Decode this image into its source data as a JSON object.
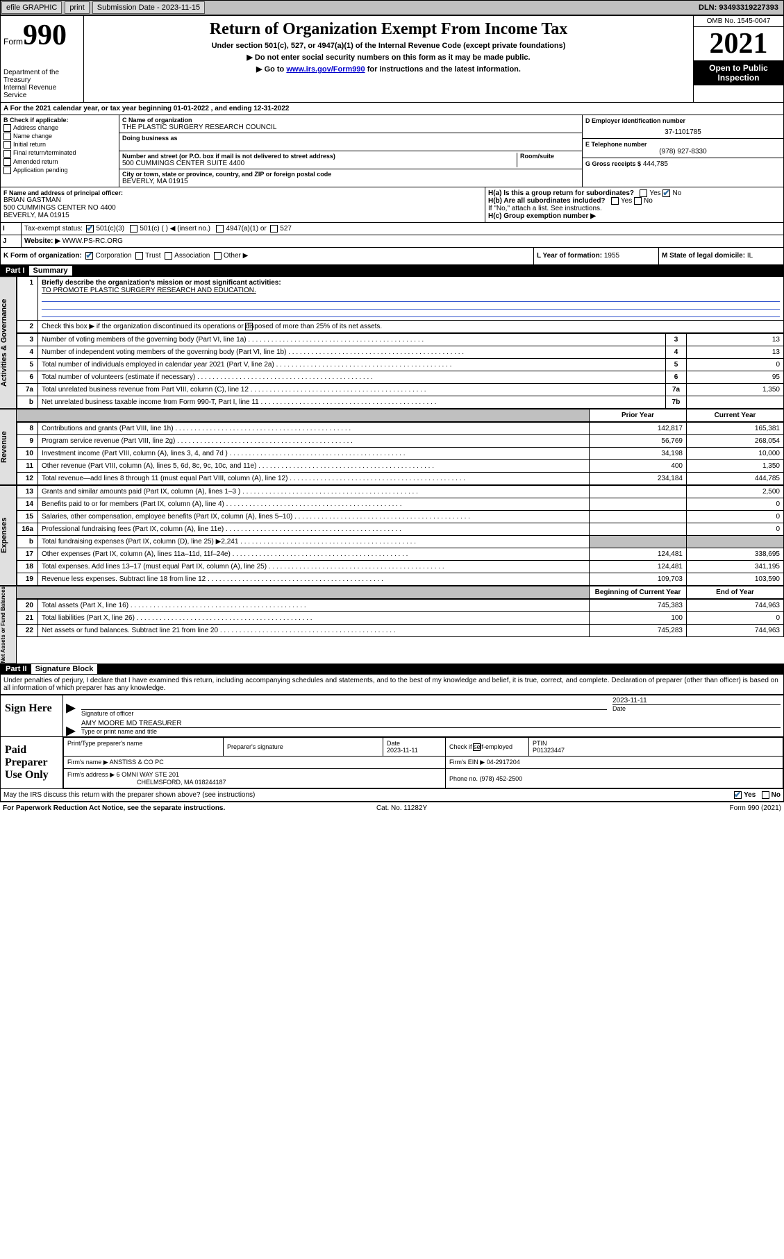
{
  "topbar": {
    "efile": "efile GRAPHIC",
    "print": "print",
    "subm_lbl": "Submission Date -",
    "subm_date": "2023-11-15",
    "dln_lbl": "DLN:",
    "dln": "93493319227393"
  },
  "hdr": {
    "form": "Form",
    "formno": "990",
    "dept": "Department of the Treasury",
    "irs": "Internal Revenue Service",
    "title": "Return of Organization Exempt From Income Tax",
    "sub1": "Under section 501(c), 527, or 4947(a)(1) of the Internal Revenue Code (except private foundations)",
    "sub2": "▶ Do not enter social security numbers on this form as it may be made public.",
    "sub3_pre": "▶ Go to ",
    "sub3_link": "www.irs.gov/Form990",
    "sub3_post": " for instructions and the latest information.",
    "omb": "OMB No. 1545-0047",
    "year": "2021",
    "open": "Open to Public Inspection"
  },
  "period": {
    "text": "A For the 2021 calendar year, or tax year beginning 01-01-2022   , and ending 12-31-2022"
  },
  "blockB": {
    "title": "B Check if applicable:",
    "items": [
      "Address change",
      "Name change",
      "Initial return",
      "Final return/terminated",
      "Amended return",
      "Application pending"
    ]
  },
  "blockC": {
    "name_lbl": "C Name of organization",
    "name": "THE PLASTIC SURGERY RESEARCH COUNCIL",
    "dba": "Doing business as",
    "street_lbl": "Number and street (or P.O. box if mail is not delivered to street address)",
    "room_lbl": "Room/suite",
    "street": "500 CUMMINGS CENTER SUITE 4400",
    "city_lbl": "City or town, state or province, country, and ZIP or foreign postal code",
    "city": "BEVERLY, MA  01915"
  },
  "blockD": {
    "lbl": "D Employer identification number",
    "val": "37-1101785"
  },
  "blockE": {
    "lbl": "E Telephone number",
    "val": "(978) 927-8330"
  },
  "blockG": {
    "lbl": "G Gross receipts $",
    "val": "444,785"
  },
  "blockF": {
    "lbl": "F Name and address of principal officer:",
    "name": "BRIAN GASTMAN",
    "addr1": "500 CUMMINGS CENTER NO 4400",
    "addr2": "BEVERLY, MA  01915"
  },
  "blockH": {
    "ha": "H(a)  Is this a group return for subordinates?",
    "hb": "H(b)  Are all subordinates included?",
    "hb_note": "If \"No,\" attach a list. See instructions.",
    "hc": "H(c)  Group exemption number ▶",
    "yes": "Yes",
    "no": "No"
  },
  "blockI": {
    "lbl": "Tax-exempt status:",
    "o1": "501(c)(3)",
    "o2": "501(c) (   ) ◀ (insert no.)",
    "o3": "4947(a)(1) or",
    "o4": "527"
  },
  "blockJ": {
    "lbl": "Website: ▶",
    "val": "WWW.PS-RC.ORG"
  },
  "blockK": {
    "lbl": "K Form of organization:",
    "o1": "Corporation",
    "o2": "Trust",
    "o3": "Association",
    "o4": "Other ▶"
  },
  "blockL": {
    "lbl": "L Year of formation:",
    "val": "1955"
  },
  "blockM": {
    "lbl": "M State of legal domicile:",
    "val": "IL"
  },
  "part1": {
    "hdr": "Part I",
    "title": "Summary",
    "q1_lbl": "Briefly describe the organization's mission or most significant activities:",
    "q1_val": "TO PROMOTE PLASTIC SURGERY RESEARCH AND EDUCATION.",
    "q2": "Check this box ▶        if the organization discontinued its operations or disposed of more than 25% of its net assets.",
    "rows_gov": [
      {
        "n": "3",
        "t": "Number of voting members of the governing body (Part VI, line 1a)",
        "ln": "3",
        "v": "13"
      },
      {
        "n": "4",
        "t": "Number of independent voting members of the governing body (Part VI, line 1b)",
        "ln": "4",
        "v": "13"
      },
      {
        "n": "5",
        "t": "Total number of individuals employed in calendar year 2021 (Part V, line 2a)",
        "ln": "5",
        "v": "0"
      },
      {
        "n": "6",
        "t": "Total number of volunteers (estimate if necessary)",
        "ln": "6",
        "v": "95"
      },
      {
        "n": "7a",
        "t": "Total unrelated business revenue from Part VIII, column (C), line 12",
        "ln": "7a",
        "v": "1,350"
      },
      {
        "n": "b",
        "t": "Net unrelated business taxable income from Form 990-T, Part I, line 11",
        "ln": "7b",
        "v": ""
      }
    ],
    "col_py": "Prior Year",
    "col_cy": "Current Year",
    "rows_rev": [
      {
        "n": "8",
        "t": "Contributions and grants (Part VIII, line 1h)",
        "py": "142,817",
        "cy": "165,381"
      },
      {
        "n": "9",
        "t": "Program service revenue (Part VIII, line 2g)",
        "py": "56,769",
        "cy": "268,054"
      },
      {
        "n": "10",
        "t": "Investment income (Part VIII, column (A), lines 3, 4, and 7d )",
        "py": "34,198",
        "cy": "10,000"
      },
      {
        "n": "11",
        "t": "Other revenue (Part VIII, column (A), lines 5, 6d, 8c, 9c, 10c, and 11e)",
        "py": "400",
        "cy": "1,350"
      },
      {
        "n": "12",
        "t": "Total revenue—add lines 8 through 11 (must equal Part VIII, column (A), line 12)",
        "py": "234,184",
        "cy": "444,785"
      }
    ],
    "rows_exp": [
      {
        "n": "13",
        "t": "Grants and similar amounts paid (Part IX, column (A), lines 1–3 )",
        "py": "",
        "cy": "2,500"
      },
      {
        "n": "14",
        "t": "Benefits paid to or for members (Part IX, column (A), line 4)",
        "py": "",
        "cy": "0"
      },
      {
        "n": "15",
        "t": "Salaries, other compensation, employee benefits (Part IX, column (A), lines 5–10)",
        "py": "",
        "cy": "0"
      },
      {
        "n": "16a",
        "t": "Professional fundraising fees (Part IX, column (A), line 11e)",
        "py": "",
        "cy": "0"
      },
      {
        "n": "b",
        "t": "Total fundraising expenses (Part IX, column (D), line 25) ▶2,241",
        "py": "SHADE",
        "cy": "SHADE"
      },
      {
        "n": "17",
        "t": "Other expenses (Part IX, column (A), lines 11a–11d, 11f–24e)",
        "py": "124,481",
        "cy": "338,695"
      },
      {
        "n": "18",
        "t": "Total expenses. Add lines 13–17 (must equal Part IX, column (A), line 25)",
        "py": "124,481",
        "cy": "341,195"
      },
      {
        "n": "19",
        "t": "Revenue less expenses. Subtract line 18 from line 12",
        "py": "109,703",
        "cy": "103,590"
      }
    ],
    "col_boy": "Beginning of Current Year",
    "col_eoy": "End of Year",
    "rows_net": [
      {
        "n": "20",
        "t": "Total assets (Part X, line 16)",
        "py": "745,383",
        "cy": "744,963"
      },
      {
        "n": "21",
        "t": "Total liabilities (Part X, line 26)",
        "py": "100",
        "cy": "0"
      },
      {
        "n": "22",
        "t": "Net assets or fund balances. Subtract line 21 from line 20",
        "py": "745,283",
        "cy": "744,963"
      }
    ],
    "sidetabs": [
      "Activities & Governance",
      "Revenue",
      "Expenses",
      "Net Assets or Fund Balances"
    ]
  },
  "part2": {
    "hdr": "Part II",
    "title": "Signature Block",
    "decl": "Under penalties of perjury, I declare that I have examined this return, including accompanying schedules and statements, and to the best of my knowledge and belief, it is true, correct, and complete. Declaration of preparer (other than officer) is based on all information of which preparer has any knowledge.",
    "sign_here": "Sign Here",
    "sig_off": "Signature of officer",
    "date_lbl": "Date",
    "sig_date": "2023-11-11",
    "officer": "AMY MOORE MD  TREASURER",
    "officer_lbl": "Type or print name and title",
    "paid": "Paid Preparer Use Only",
    "pt_name_lbl": "Print/Type preparer's name",
    "pt_sig_lbl": "Preparer's signature",
    "pt_date_lbl": "Date",
    "pt_date": "2023-11-11",
    "pt_check": "Check         if self-employed",
    "ptin_lbl": "PTIN",
    "ptin": "P01323447",
    "firm_lbl": "Firm's name    ▶",
    "firm": "ANSTISS & CO PC",
    "ein_lbl": "Firm's EIN ▶",
    "ein": "04-2917204",
    "addr_lbl": "Firm's address ▶",
    "addr1": "6 OMNI WAY STE 201",
    "addr2": "CHELMSFORD, MA  018244187",
    "phone_lbl": "Phone no.",
    "phone": "(978) 452-2500",
    "may": "May the IRS discuss this return with the preparer shown above? (see instructions)",
    "yes": "Yes",
    "no": "No"
  },
  "footer": {
    "left": "For Paperwork Reduction Act Notice, see the separate instructions.",
    "mid": "Cat. No. 11282Y",
    "right": "Form 990 (2021)"
  },
  "colors": {
    "topbar_bg": "#c0c0c0",
    "shade": "#c0c0c0",
    "link": "#0000cc",
    "check": "#2e6da4"
  }
}
